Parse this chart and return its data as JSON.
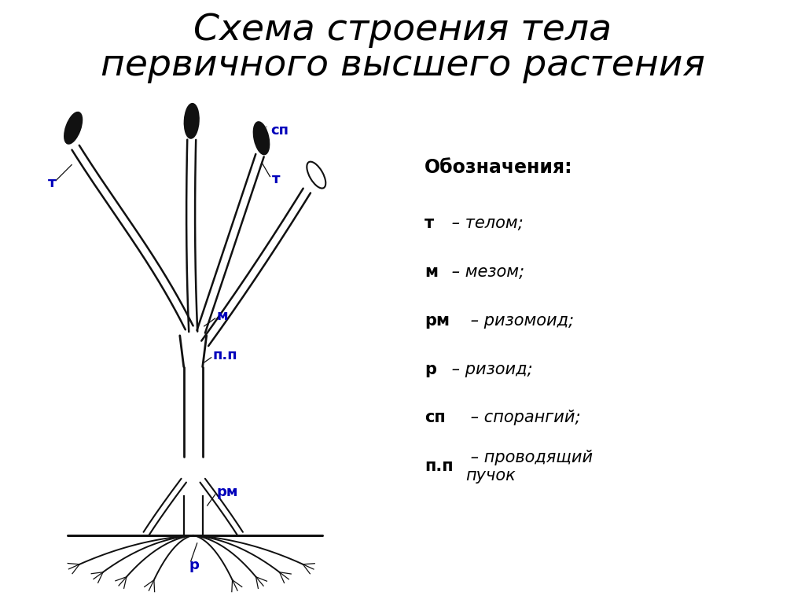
{
  "title_line1": "Схема строения тела",
  "title_line2": "первичного высшего растения",
  "title_fontsize": 34,
  "bg_color": "#ffffff",
  "diagram_color": "#111111",
  "label_color": "#0000bb",
  "legend_title": "Обозначения:",
  "legend_labels_bold": [
    "т",
    "м",
    "рм",
    "р",
    "сп",
    "п.п"
  ],
  "legend_labels_italic": [
    " – телом;",
    " – мезом;",
    " – ризомоид;",
    " – ризоид;",
    " – спорангий;",
    " – проводящий\nпучок"
  ]
}
